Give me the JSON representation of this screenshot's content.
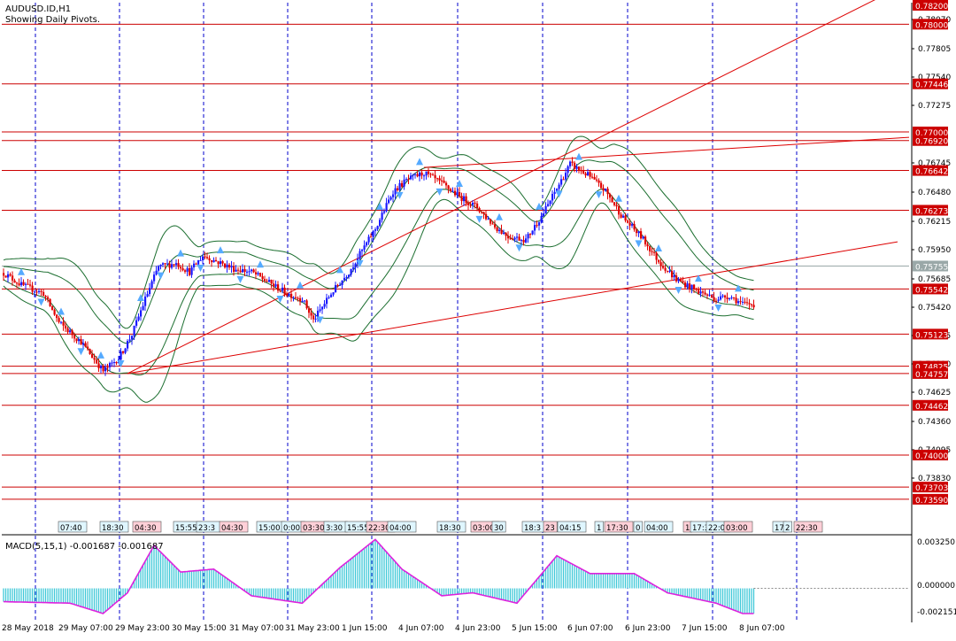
{
  "chart_title": "AUDUSD.ID,H1",
  "chart_subtitle": "Showing Daily Pivots.",
  "macd_label": "MACD(5,15,1) -0.001687 -0.001687",
  "colors": {
    "bull": "#1a1aff",
    "bear": "#e00000",
    "pivot": "#cc0000",
    "trend": "#dd0000",
    "band": "#1b6e2f",
    "vgrid": "#0000cc",
    "macd_hist": "#40c8d8",
    "macd_line": "#dd22dd",
    "fractal": "#55aaff"
  },
  "chart_data": {
    "type": "candlestick",
    "symbol": "AUDUSD.ID",
    "timeframe": "H1",
    "ylim": [
      0.73474,
      0.782
    ],
    "price_ticks": [
      "0.78070",
      "0.77805",
      "0.77540",
      "0.77275",
      "0.76745",
      "0.76480",
      "0.76215",
      "0.75950",
      "0.75685",
      "0.75420",
      "0.75155",
      "0.74890",
      "0.74625",
      "0.74360",
      "0.74095",
      "0.73830"
    ],
    "pivot_levels": [
      0.78,
      0.77446,
      0.77,
      0.7692,
      0.76642,
      0.76273,
      0.75542,
      0.75123,
      0.74825,
      0.74757,
      0.74462,
      0.74,
      0.73703,
      0.7359
    ],
    "pivot_labels": [
      "0.78200",
      "0.78000",
      "0.77446",
      "0.77000",
      "0.76920",
      "0.76642",
      "0.76273",
      "0.75542",
      "0.75123",
      "0.74825",
      "0.74757",
      "0.74462",
      "0.74000",
      "0.73703",
      "0.73590"
    ],
    "current_price": 0.75755,
    "current_label": "0.75755",
    "x_labels": [
      "28 May 2018",
      "29 May 07:00",
      "29 May 23:00",
      "30 May 15:00",
      "31 May 07:00",
      "31 May 23:00",
      "1 Jun 15:00",
      "4 Jun 07:00",
      "4 Jun 23:00",
      "5 Jun 15:00",
      "6 Jun 07:00",
      "6 Jun 23:00",
      "7 Jun 15:00",
      "8 Jun 07:00"
    ],
    "time_boxes": [
      "07:40",
      "18:30",
      "04:30",
      "15:55",
      "23:3",
      "04:30",
      "15:00",
      "0:00",
      "03:30",
      "3:30",
      "15:55",
      "22:30",
      "04:00",
      "18:30",
      "03:00",
      "30",
      "18:3",
      "23",
      "04:15",
      "1",
      "17:30",
      "0",
      "04:00",
      "1",
      "17:3",
      "22:0",
      "03:00",
      "17",
      "2",
      "22:30"
    ],
    "close_path": [
      [
        0,
        0.7569
      ],
      [
        8,
        0.7558
      ],
      [
        18,
        0.755
      ],
      [
        25,
        0.7523
      ],
      [
        35,
        0.7505
      ],
      [
        45,
        0.7478
      ],
      [
        52,
        0.749
      ],
      [
        58,
        0.7512
      ],
      [
        64,
        0.7545
      ],
      [
        70,
        0.7575
      ],
      [
        78,
        0.7578
      ],
      [
        84,
        0.757
      ],
      [
        90,
        0.7585
      ],
      [
        96,
        0.758
      ],
      [
        104,
        0.7573
      ],
      [
        112,
        0.757
      ],
      [
        120,
        0.756
      ],
      [
        128,
        0.755
      ],
      [
        135,
        0.7545
      ],
      [
        140,
        0.7525
      ],
      [
        148,
        0.755
      ],
      [
        156,
        0.757
      ],
      [
        168,
        0.761
      ],
      [
        176,
        0.7645
      ],
      [
        182,
        0.7655
      ],
      [
        190,
        0.7662
      ],
      [
        198,
        0.7652
      ],
      [
        206,
        0.764
      ],
      [
        214,
        0.763
      ],
      [
        222,
        0.7612
      ],
      [
        228,
        0.7603
      ],
      [
        236,
        0.76
      ],
      [
        244,
        0.7625
      ],
      [
        252,
        0.7655
      ],
      [
        256,
        0.767
      ],
      [
        264,
        0.766
      ],
      [
        272,
        0.7645
      ],
      [
        280,
        0.762
      ],
      [
        288,
        0.7603
      ],
      [
        296,
        0.758
      ],
      [
        304,
        0.7563
      ],
      [
        314,
        0.7552
      ],
      [
        322,
        0.7545
      ],
      [
        328,
        0.7548
      ],
      [
        334,
        0.754
      ]
    ],
    "macd_ylim": [
      -0.0023,
      0.0035
    ],
    "macd_ticks": [
      "0.003250",
      "0.000000",
      "-0.002151"
    ],
    "macd_hist": [
      [
        0,
        -0.0009
      ],
      [
        30,
        -0.001
      ],
      [
        45,
        -0.0017
      ],
      [
        56,
        -0.0003
      ],
      [
        68,
        0.0029
      ],
      [
        80,
        0.0011
      ],
      [
        95,
        0.0013
      ],
      [
        112,
        -0.0005
      ],
      [
        135,
        -0.001
      ],
      [
        152,
        0.0014
      ],
      [
        168,
        0.0033
      ],
      [
        180,
        0.0013
      ],
      [
        198,
        -0.0005
      ],
      [
        212,
        -0.0003
      ],
      [
        232,
        -0.001
      ],
      [
        250,
        0.0022
      ],
      [
        265,
        0.001
      ],
      [
        285,
        0.001
      ],
      [
        300,
        -0.0003
      ],
      [
        322,
        -0.001
      ],
      [
        334,
        -0.0017
      ]
    ]
  }
}
